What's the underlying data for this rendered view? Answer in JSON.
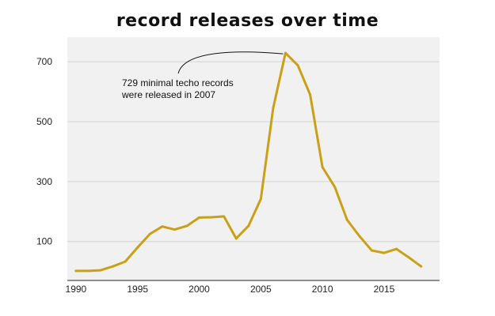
{
  "chart_data": {
    "type": "line",
    "title": "record releases over time",
    "xlabel": "",
    "ylabel": "",
    "xlim": [
      1989.3,
      2019.5
    ],
    "ylim": [
      -30,
      782
    ],
    "grid": true,
    "grid_axis": "y",
    "x_ticks": [
      1990,
      1995,
      2000,
      2005,
      2010,
      2015
    ],
    "y_ticks": [
      100,
      300,
      500,
      700
    ],
    "x": [
      1990,
      1991,
      1992,
      1993,
      1994,
      1995,
      1996,
      1997,
      1998,
      1999,
      2000,
      2001,
      2002,
      2003,
      2004,
      2005,
      2006,
      2007,
      2008,
      2009,
      2010,
      2011,
      2012,
      2013,
      2014,
      2015,
      2016,
      2017,
      2018
    ],
    "series": [
      {
        "values": [
          2,
          2,
          4,
          17,
          33,
          80,
          125,
          150,
          140,
          152,
          180,
          181,
          184,
          110,
          152,
          242,
          545,
          729,
          688,
          590,
          348,
          282,
          172,
          118,
          70,
          62,
          75,
          47,
          17
        ],
        "color": "#c9a017"
      }
    ],
    "annotation": {
      "lines": [
        "729 minimal techo records",
        "were released in 2007"
      ],
      "x": 2007,
      "y": 729
    },
    "colors": {
      "plot_background": "#f1f1f1",
      "gridline": "#d2d2d2",
      "axis": "#222222"
    }
  }
}
